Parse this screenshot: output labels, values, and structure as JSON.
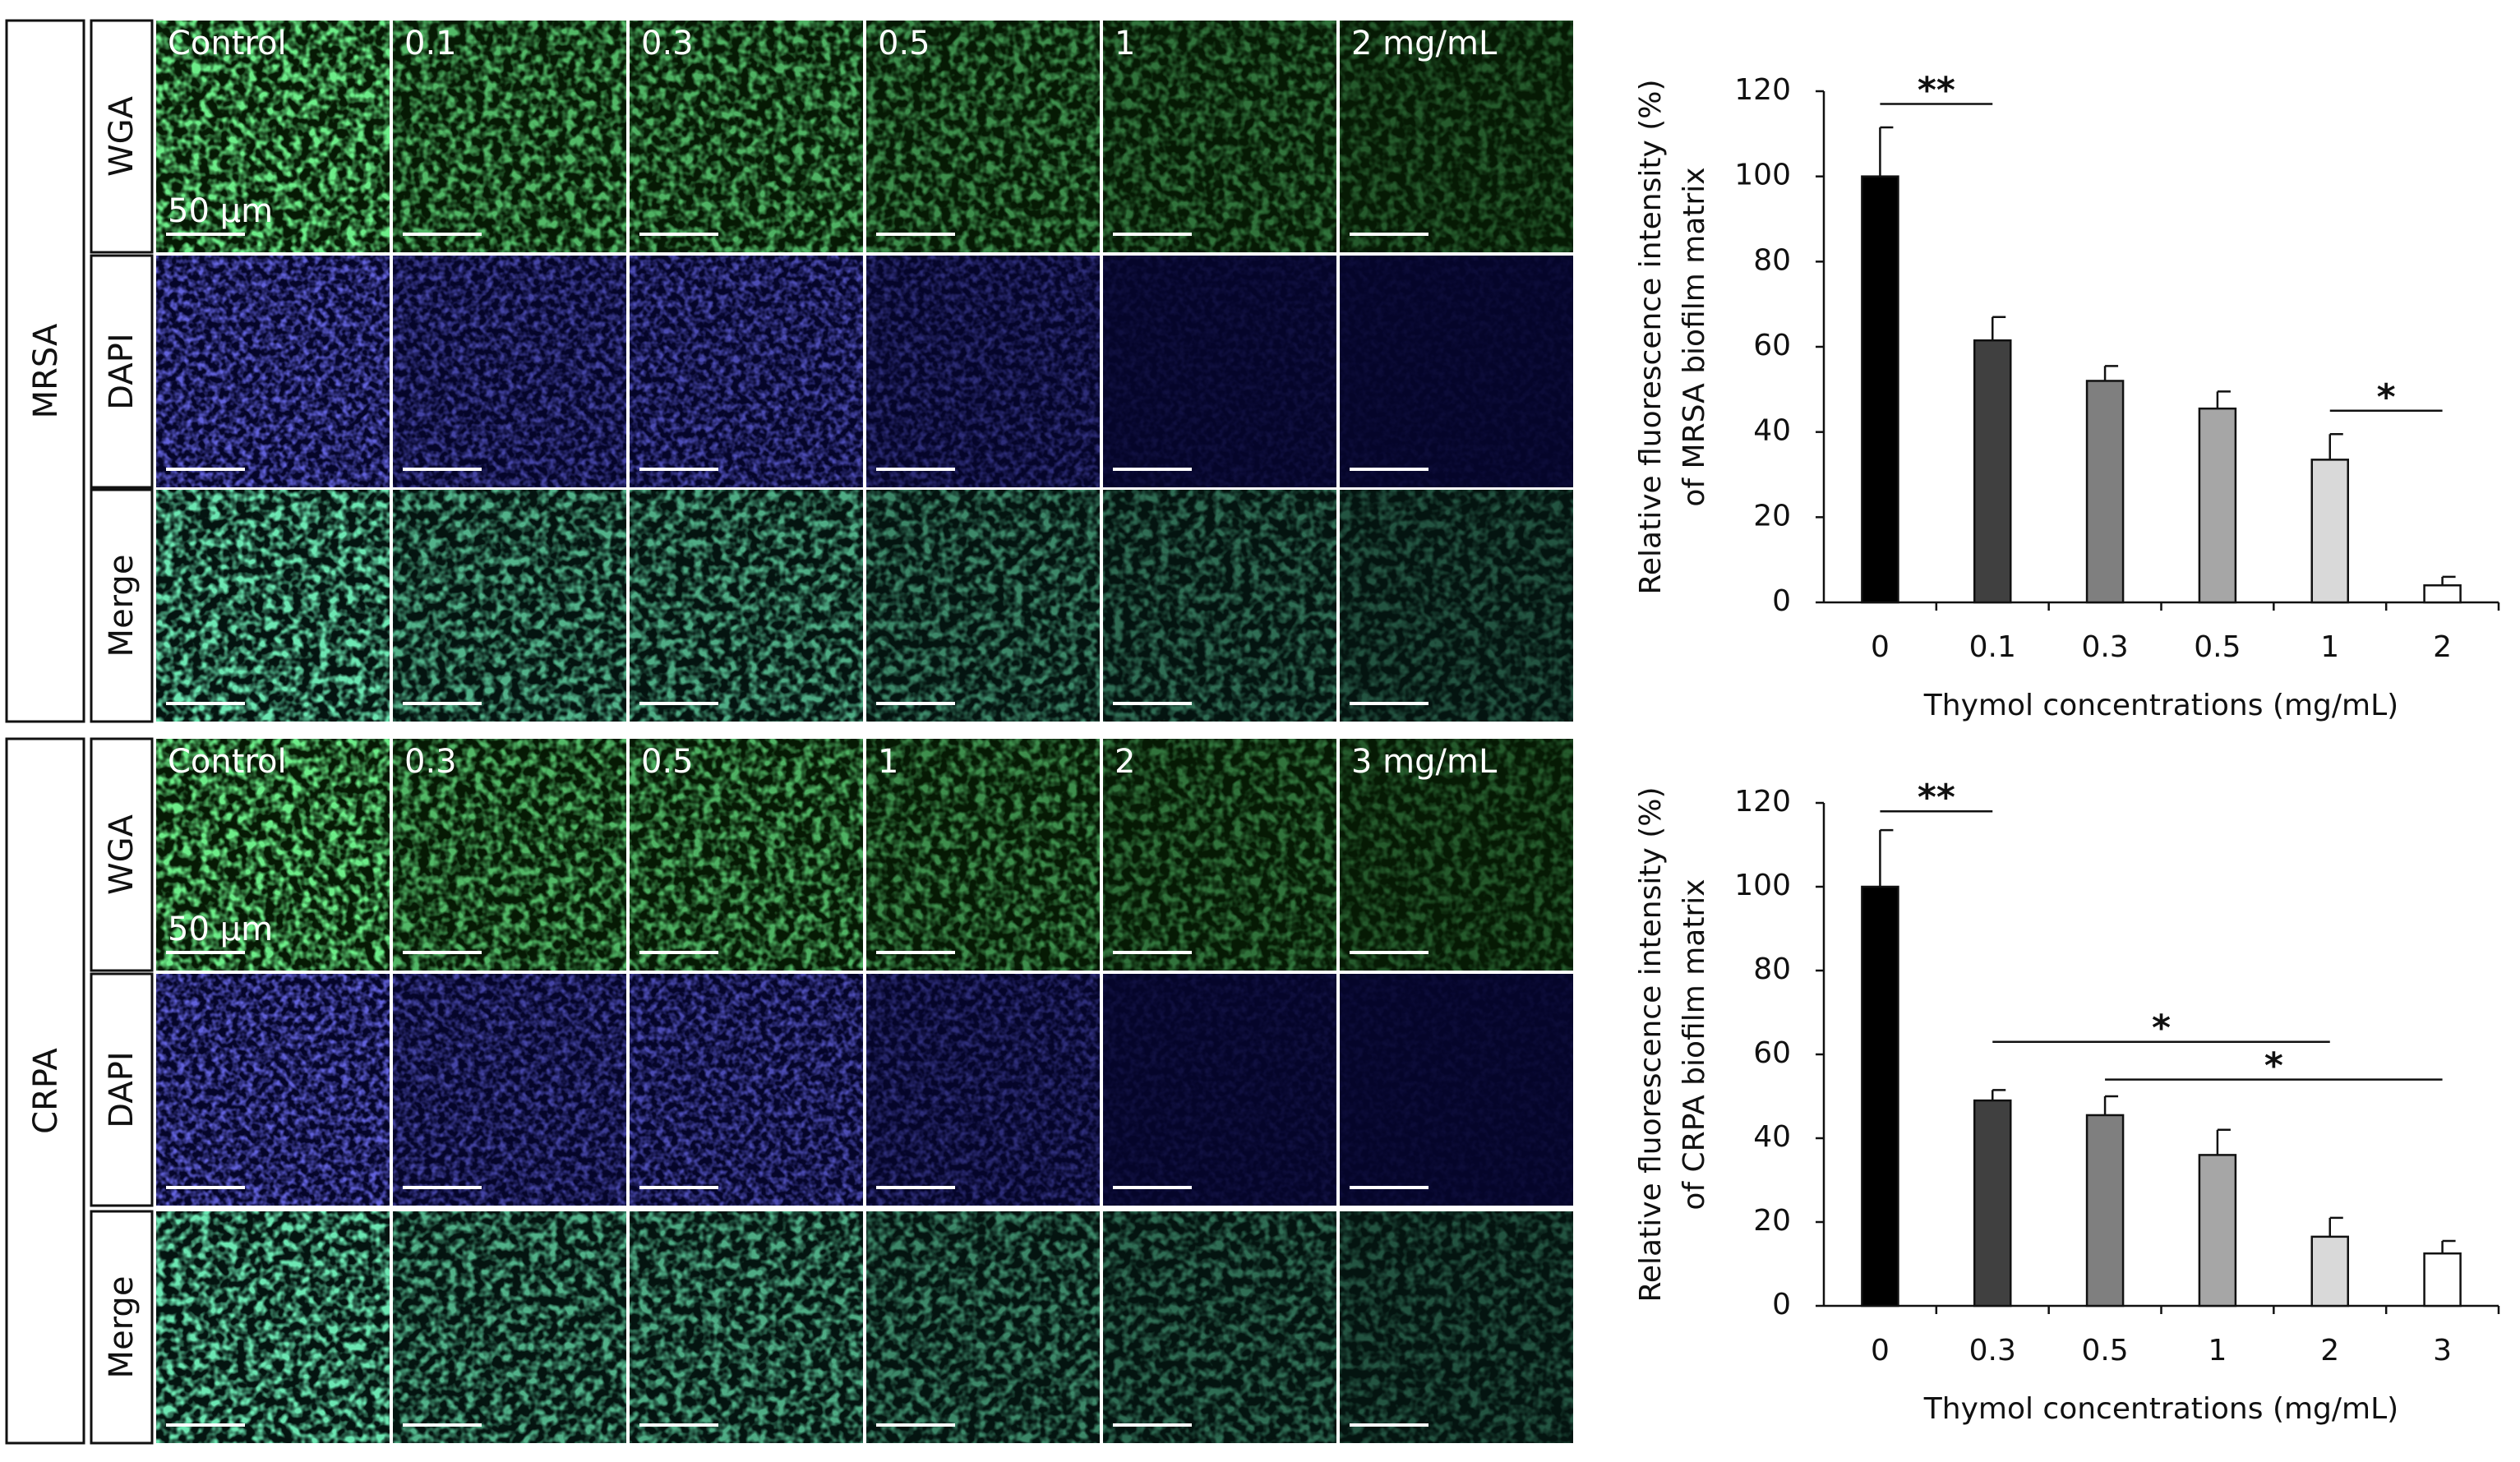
{
  "figure": {
    "groups": [
      {
        "name": "MRSA",
        "channels": [
          "WGA",
          "DAPI",
          "Merge"
        ],
        "columns": [
          "Control",
          "0.1",
          "0.3",
          "0.5",
          "1",
          "2 mg/mL"
        ],
        "scale_bar": "50 µm"
      },
      {
        "name": "CRPA",
        "channels": [
          "WGA",
          "DAPI",
          "Merge"
        ],
        "columns": [
          "Control",
          "0.3",
          "0.5",
          "1",
          "2",
          "3 mg/mL"
        ],
        "scale_bar": "50 µm"
      }
    ]
  },
  "chart_data": [
    {
      "type": "bar",
      "ylabel": [
        "Relative fluorescence intensity (%)",
        "of MRSA biofilm matrix"
      ],
      "xlabel": "Thymol concentrations (mg/mL)",
      "categories": [
        "0",
        "0.1",
        "0.3",
        "0.5",
        "1",
        "2"
      ],
      "values": [
        100,
        61.5,
        52,
        45.5,
        33.5,
        4
      ],
      "errors": [
        11.5,
        5.5,
        3.5,
        4,
        6,
        2
      ],
      "colors": [
        "#000000",
        "#404040",
        "#7f7f7f",
        "#a6a6a6",
        "#d9d9d9",
        "#ffffff"
      ],
      "ylim": [
        0,
        120
      ],
      "yticks": [
        0,
        20,
        40,
        60,
        80,
        100,
        120
      ],
      "annotations": [
        {
          "text": "**",
          "x": [
            0,
            1
          ],
          "y": 117
        },
        {
          "text": "*",
          "x": [
            4,
            5
          ],
          "y": 45
        }
      ]
    },
    {
      "type": "bar",
      "ylabel": [
        "Relative fluorescence intensity (%)",
        "of CRPA biofilm matrix"
      ],
      "xlabel": "Thymol concentrations (mg/mL)",
      "categories": [
        "0",
        "0.3",
        "0.5",
        "1",
        "2",
        "3"
      ],
      "values": [
        100,
        49,
        45.5,
        36,
        16.5,
        12.5
      ],
      "errors": [
        13.5,
        2.5,
        4.5,
        6,
        4.5,
        3
      ],
      "colors": [
        "#000000",
        "#404040",
        "#7f7f7f",
        "#a6a6a6",
        "#d9d9d9",
        "#ffffff"
      ],
      "ylim": [
        0,
        120
      ],
      "yticks": [
        0,
        20,
        40,
        60,
        80,
        100,
        120
      ],
      "annotations": [
        {
          "text": "**",
          "x": [
            0,
            1
          ],
          "y": 118
        },
        {
          "text": "*",
          "x": [
            1,
            4
          ],
          "y": 63
        },
        {
          "text": "*",
          "x": [
            2,
            5
          ],
          "y": 54
        }
      ]
    }
  ]
}
